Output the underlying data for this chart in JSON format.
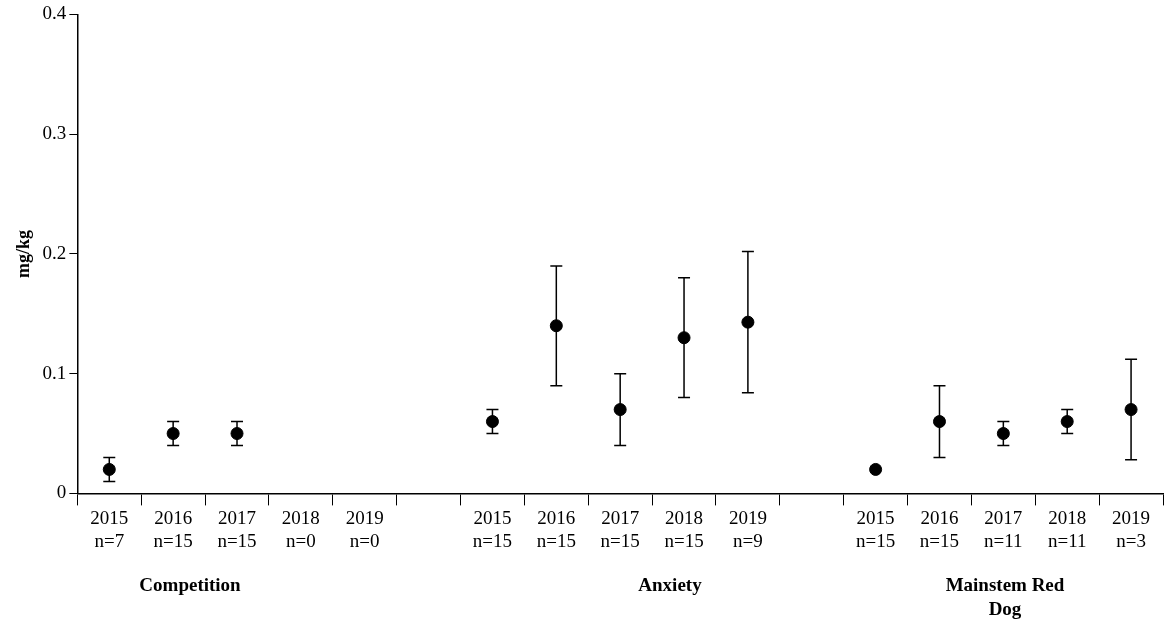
{
  "chart_data": {
    "type": "scatter",
    "ylabel": "mg/kg",
    "categories": [
      "2015\nn=7",
      "2016\nn=15",
      "2017\nn=15",
      "2018\nn=0",
      "2019\nn=0",
      null,
      "2015\nn=15",
      "2016\nn=15",
      "2017\nn=15",
      "2018\nn=15",
      "2019\nn=9",
      null,
      "2015\nn=15",
      "2016\nn=15",
      "2017\nn=11",
      "2018\nn=11",
      "2019\nn=3"
    ],
    "values": [
      0.02,
      0.05,
      0.05,
      null,
      null,
      null,
      0.06,
      0.14,
      0.07,
      0.13,
      0.143,
      null,
      0.02,
      0.06,
      0.05,
      0.06,
      0.07
    ],
    "errors": [
      0.01,
      0.01,
      0.01,
      null,
      null,
      null,
      0.01,
      0.05,
      0.03,
      0.05,
      0.059,
      null,
      null,
      0.03,
      0.01,
      0.01,
      0.042
    ],
    "color": "#000000",
    "marker": "circle",
    "ylim": [
      0,
      0.4
    ],
    "yticks": [
      0,
      0.1,
      0.2,
      0.3,
      0.4
    ],
    "grid": false,
    "legend": false,
    "annotations": [
      "Competition",
      "Anxiety",
      "Mainstem Red Dog"
    ]
  }
}
